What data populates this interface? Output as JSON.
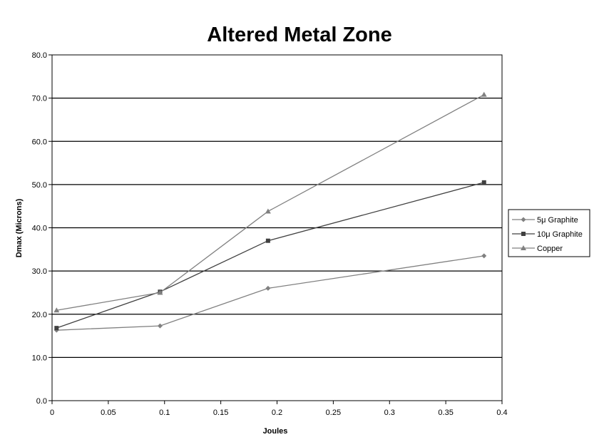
{
  "chart_data": {
    "type": "line",
    "title": "Altered Metal Zone",
    "xlabel": "Joules",
    "ylabel": "Dmax (Microns)",
    "xlim": [
      0,
      0.4
    ],
    "ylim": [
      0,
      80
    ],
    "x_ticks": [
      "0",
      "0.05",
      "0.1",
      "0.15",
      "0.2",
      "0.25",
      "0.3",
      "0.35",
      "0.4"
    ],
    "x_tick_values": [
      0,
      0.05,
      0.1,
      0.15,
      0.2,
      0.25,
      0.3,
      0.35,
      0.4
    ],
    "y_ticks": [
      "0.0",
      "10.0",
      "20.0",
      "30.0",
      "40.0",
      "50.0",
      "60.0",
      "70.0",
      "80.0"
    ],
    "y_tick_values": [
      0,
      10,
      20,
      30,
      40,
      50,
      60,
      70,
      80
    ],
    "grid": "horizontal",
    "legend_position": "right",
    "series": [
      {
        "name": "5μ Graphite",
        "marker": "diamond",
        "color": "#808080",
        "points": [
          [
            0.004,
            16.3
          ],
          [
            0.096,
            17.3
          ],
          [
            0.192,
            26.0
          ],
          [
            0.384,
            33.5
          ]
        ]
      },
      {
        "name": "10μ Graphite",
        "marker": "square",
        "color": "#404040",
        "points": [
          [
            0.004,
            16.8
          ],
          [
            0.096,
            25.2
          ],
          [
            0.192,
            37.0
          ],
          [
            0.384,
            50.5
          ]
        ]
      },
      {
        "name": "Copper",
        "marker": "triangle",
        "color": "#808080",
        "points": [
          [
            0.004,
            20.9
          ],
          [
            0.096,
            25.0
          ],
          [
            0.192,
            43.8
          ],
          [
            0.384,
            70.8
          ]
        ]
      }
    ]
  }
}
